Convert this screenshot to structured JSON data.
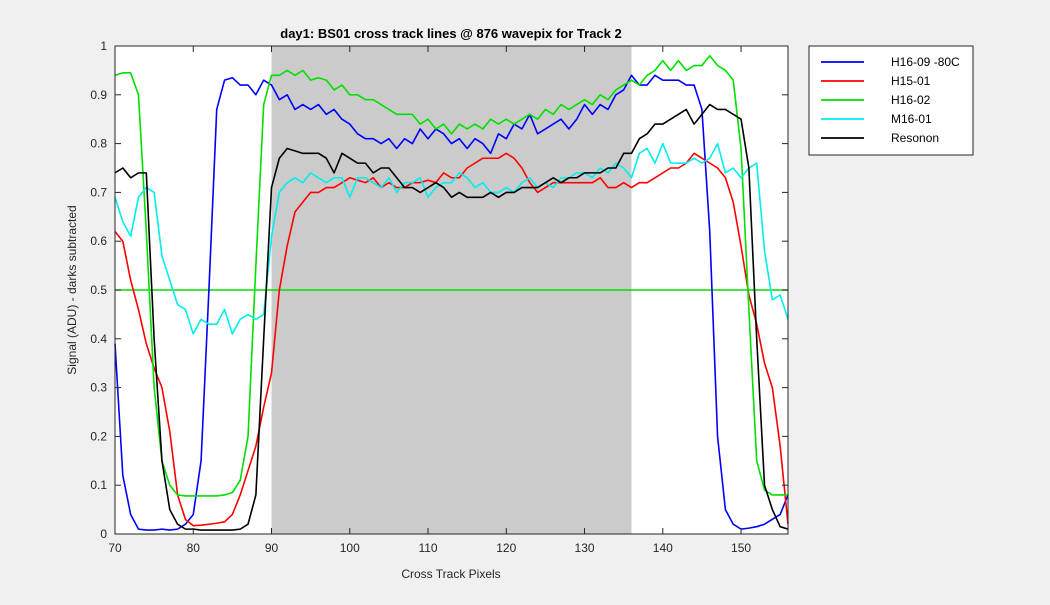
{
  "chart_data": {
    "type": "line",
    "title": "day1: BS01  cross track lines @ 876 wavepix for Track 2",
    "xlabel": "Cross Track Pixels",
    "ylabel": "Signal (ADU) - darks subtracted",
    "xlim": [
      70,
      156
    ],
    "ylim": [
      0,
      1
    ],
    "xticks": [
      "70",
      "80",
      "90",
      "100",
      "110",
      "120",
      "130",
      "140",
      "150"
    ],
    "yticks": [
      "0",
      "0.1",
      "0.2",
      "0.3",
      "0.4",
      "0.5",
      "0.6",
      "0.7",
      "0.8",
      "0.9",
      "1"
    ],
    "grid": false,
    "legend_placement": "outside-top-right",
    "shaded_region": {
      "x": [
        90,
        136
      ],
      "color": "#cbcbcb"
    },
    "reference_line": {
      "y": 0.5,
      "color": "#00e000"
    },
    "x": [
      70,
      71,
      72,
      73,
      74,
      75,
      76,
      77,
      78,
      79,
      80,
      81,
      82,
      83,
      84,
      85,
      86,
      87,
      88,
      89,
      90,
      91,
      92,
      93,
      94,
      95,
      96,
      97,
      98,
      99,
      100,
      101,
      102,
      103,
      104,
      105,
      106,
      107,
      108,
      109,
      110,
      111,
      112,
      113,
      114,
      115,
      116,
      117,
      118,
      119,
      120,
      121,
      122,
      123,
      124,
      125,
      126,
      127,
      128,
      129,
      130,
      131,
      132,
      133,
      134,
      135,
      136,
      137,
      138,
      139,
      140,
      141,
      142,
      143,
      144,
      145,
      146,
      147,
      148,
      149,
      150,
      151,
      152,
      153,
      154,
      155,
      156
    ],
    "series": [
      {
        "name": "H16-09 -80C",
        "color": "#0000ff",
        "values": [
          0.39,
          0.12,
          0.04,
          0.01,
          0.008,
          0.008,
          0.01,
          0.008,
          0.01,
          0.02,
          0.04,
          0.15,
          0.5,
          0.87,
          0.93,
          0.935,
          0.92,
          0.92,
          0.9,
          0.93,
          0.92,
          0.89,
          0.9,
          0.87,
          0.88,
          0.87,
          0.88,
          0.86,
          0.87,
          0.85,
          0.84,
          0.82,
          0.81,
          0.81,
          0.8,
          0.81,
          0.79,
          0.81,
          0.8,
          0.83,
          0.81,
          0.83,
          0.82,
          0.8,
          0.81,
          0.79,
          0.81,
          0.8,
          0.78,
          0.82,
          0.81,
          0.84,
          0.83,
          0.86,
          0.82,
          0.83,
          0.84,
          0.85,
          0.83,
          0.85,
          0.88,
          0.86,
          0.88,
          0.87,
          0.9,
          0.91,
          0.94,
          0.92,
          0.92,
          0.94,
          0.93,
          0.93,
          0.93,
          0.92,
          0.92,
          0.87,
          0.62,
          0.2,
          0.05,
          0.02,
          0.01,
          0.012,
          0.015,
          0.02,
          0.03,
          0.04,
          0.08
        ]
      },
      {
        "name": "H15-01",
        "color": "#ff0000",
        "values": [
          0.62,
          0.6,
          0.52,
          0.46,
          0.39,
          0.34,
          0.3,
          0.21,
          0.08,
          0.03,
          0.017,
          0.018,
          0.02,
          0.022,
          0.025,
          0.04,
          0.08,
          0.13,
          0.18,
          0.26,
          0.33,
          0.5,
          0.59,
          0.66,
          0.68,
          0.7,
          0.7,
          0.71,
          0.71,
          0.72,
          0.73,
          0.725,
          0.72,
          0.73,
          0.71,
          0.72,
          0.71,
          0.71,
          0.72,
          0.72,
          0.725,
          0.72,
          0.74,
          0.73,
          0.73,
          0.75,
          0.76,
          0.77,
          0.77,
          0.77,
          0.78,
          0.77,
          0.75,
          0.72,
          0.7,
          0.71,
          0.72,
          0.72,
          0.72,
          0.72,
          0.72,
          0.72,
          0.73,
          0.71,
          0.71,
          0.72,
          0.71,
          0.72,
          0.72,
          0.73,
          0.74,
          0.75,
          0.75,
          0.76,
          0.78,
          0.77,
          0.76,
          0.75,
          0.73,
          0.68,
          0.59,
          0.49,
          0.43,
          0.35,
          0.3,
          0.18,
          0.02
        ]
      },
      {
        "name": "H16-02",
        "color": "#00e000",
        "values": [
          0.94,
          0.945,
          0.945,
          0.9,
          0.62,
          0.3,
          0.15,
          0.1,
          0.08,
          0.078,
          0.078,
          0.078,
          0.078,
          0.078,
          0.08,
          0.085,
          0.11,
          0.2,
          0.55,
          0.88,
          0.94,
          0.94,
          0.95,
          0.94,
          0.95,
          0.93,
          0.935,
          0.93,
          0.91,
          0.92,
          0.9,
          0.9,
          0.89,
          0.89,
          0.88,
          0.87,
          0.86,
          0.86,
          0.86,
          0.84,
          0.85,
          0.83,
          0.84,
          0.82,
          0.84,
          0.83,
          0.84,
          0.83,
          0.85,
          0.84,
          0.85,
          0.84,
          0.85,
          0.86,
          0.85,
          0.87,
          0.86,
          0.88,
          0.87,
          0.88,
          0.89,
          0.88,
          0.9,
          0.89,
          0.91,
          0.92,
          0.93,
          0.92,
          0.94,
          0.95,
          0.97,
          0.95,
          0.97,
          0.95,
          0.96,
          0.96,
          0.98,
          0.96,
          0.95,
          0.93,
          0.79,
          0.46,
          0.15,
          0.09,
          0.08,
          0.08,
          0.08
        ]
      },
      {
        "name": "M16-01",
        "color": "#00eeee",
        "values": [
          0.69,
          0.64,
          0.61,
          0.69,
          0.71,
          0.7,
          0.57,
          0.52,
          0.47,
          0.46,
          0.41,
          0.44,
          0.43,
          0.43,
          0.46,
          0.41,
          0.44,
          0.45,
          0.44,
          0.45,
          0.61,
          0.7,
          0.72,
          0.73,
          0.72,
          0.74,
          0.73,
          0.72,
          0.73,
          0.73,
          0.69,
          0.73,
          0.73,
          0.72,
          0.71,
          0.73,
          0.7,
          0.72,
          0.72,
          0.73,
          0.69,
          0.71,
          0.72,
          0.72,
          0.74,
          0.73,
          0.71,
          0.72,
          0.7,
          0.7,
          0.71,
          0.7,
          0.72,
          0.73,
          0.71,
          0.72,
          0.71,
          0.73,
          0.73,
          0.74,
          0.74,
          0.73,
          0.75,
          0.74,
          0.76,
          0.75,
          0.73,
          0.78,
          0.79,
          0.76,
          0.8,
          0.76,
          0.76,
          0.76,
          0.77,
          0.76,
          0.77,
          0.8,
          0.74,
          0.75,
          0.73,
          0.75,
          0.76,
          0.58,
          0.48,
          0.49,
          0.44
        ]
      },
      {
        "name": "Resonon",
        "color": "#000000",
        "values": [
          0.74,
          0.75,
          0.73,
          0.74,
          0.74,
          0.4,
          0.15,
          0.05,
          0.02,
          0.01,
          0.01,
          0.008,
          0.008,
          0.008,
          0.008,
          0.008,
          0.01,
          0.02,
          0.08,
          0.4,
          0.71,
          0.77,
          0.79,
          0.785,
          0.78,
          0.78,
          0.78,
          0.77,
          0.74,
          0.78,
          0.77,
          0.76,
          0.76,
          0.74,
          0.75,
          0.75,
          0.73,
          0.71,
          0.71,
          0.7,
          0.71,
          0.72,
          0.71,
          0.69,
          0.7,
          0.69,
          0.69,
          0.69,
          0.7,
          0.69,
          0.7,
          0.7,
          0.71,
          0.71,
          0.71,
          0.72,
          0.73,
          0.72,
          0.73,
          0.73,
          0.74,
          0.74,
          0.74,
          0.75,
          0.75,
          0.78,
          0.78,
          0.81,
          0.82,
          0.84,
          0.84,
          0.85,
          0.86,
          0.87,
          0.84,
          0.86,
          0.88,
          0.87,
          0.87,
          0.86,
          0.85,
          0.75,
          0.4,
          0.1,
          0.05,
          0.015,
          0.01
        ]
      }
    ]
  }
}
